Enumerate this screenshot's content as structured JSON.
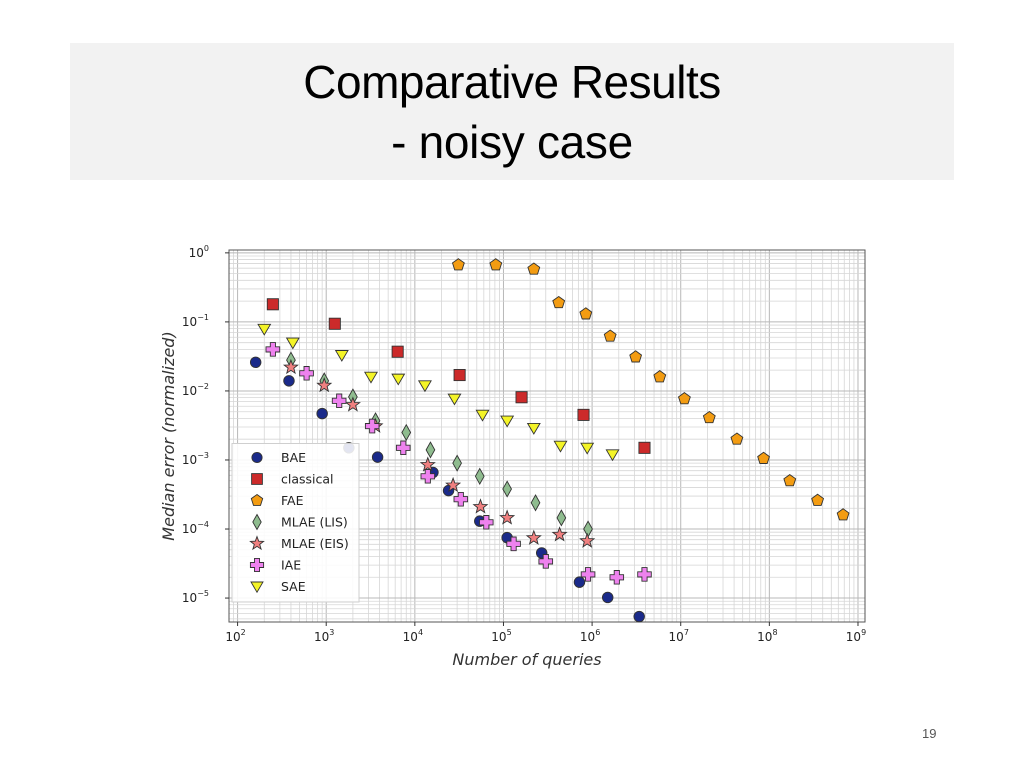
{
  "slide": {
    "title": "Comparative Results",
    "subtitle": "- noisy case",
    "page_number": "19"
  },
  "chart_data": {
    "type": "scatter",
    "xlabel": "Number of queries",
    "ylabel": "Median error (normalized)",
    "x_scale": "log",
    "y_scale": "log",
    "xlim": [
      80,
      1200000000
    ],
    "ylim": [
      4.5e-06,
      1.1
    ],
    "grid": true,
    "legend_position": "lower-left",
    "x_ticks": [
      {
        "base": "10",
        "exp": "2",
        "value": 100
      },
      {
        "base": "10",
        "exp": "3",
        "value": 1000
      },
      {
        "base": "10",
        "exp": "4",
        "value": 10000
      },
      {
        "base": "10",
        "exp": "5",
        "value": 100000
      },
      {
        "base": "10",
        "exp": "6",
        "value": 1000000
      },
      {
        "base": "10",
        "exp": "7",
        "value": 10000000
      },
      {
        "base": "10",
        "exp": "8",
        "value": 100000000
      },
      {
        "base": "10",
        "exp": "9",
        "value": 1000000000
      }
    ],
    "y_ticks": [
      {
        "base": "10",
        "exp": "0",
        "value": 1
      },
      {
        "base": "10",
        "exp": "−1",
        "value": 0.1
      },
      {
        "base": "10",
        "exp": "−2",
        "value": 0.01
      },
      {
        "base": "10",
        "exp": "−3",
        "value": 0.001
      },
      {
        "base": "10",
        "exp": "−4",
        "value": 0.0001
      },
      {
        "base": "10",
        "exp": "−5",
        "value": 1e-05
      }
    ],
    "series": [
      {
        "name": "BAE",
        "marker": "circle",
        "color": "#1a2a8a",
        "points": [
          [
            160,
            0.026
          ],
          [
            380,
            0.014
          ],
          [
            900,
            0.0047
          ],
          [
            1800,
            0.0015
          ],
          [
            3800,
            0.0011
          ],
          [
            16000,
            0.00066
          ],
          [
            24000,
            0.00036
          ],
          [
            54000,
            0.00013
          ],
          [
            110000,
            7.5e-05
          ],
          [
            270000,
            4.5e-05
          ],
          [
            720000,
            1.7e-05
          ],
          [
            1500000,
            1.02e-05
          ],
          [
            3400000,
            5.4e-06
          ]
        ]
      },
      {
        "name": "classical",
        "marker": "square",
        "color": "#cc2a2a",
        "points": [
          [
            250,
            0.18
          ],
          [
            1250,
            0.094
          ],
          [
            6400,
            0.037
          ],
          [
            32000,
            0.017
          ],
          [
            160000,
            0.0081
          ],
          [
            800000,
            0.0045
          ],
          [
            3900000,
            0.0015
          ]
        ]
      },
      {
        "name": "FAE",
        "marker": "pentagon",
        "color": "#f39c12",
        "points": [
          [
            31000,
            0.67
          ],
          [
            82000,
            0.67
          ],
          [
            220000,
            0.58
          ],
          [
            420000,
            0.19
          ],
          [
            850000,
            0.13
          ],
          [
            1600000,
            0.062
          ],
          [
            3100000,
            0.031
          ],
          [
            5800000,
            0.016
          ],
          [
            11000000,
            0.0077
          ],
          [
            21000000,
            0.0041
          ],
          [
            43000000,
            0.002
          ],
          [
            86000000,
            0.00105
          ],
          [
            170000000,
            0.0005
          ],
          [
            350000000,
            0.00026
          ],
          [
            680000000,
            0.00016
          ]
        ]
      },
      {
        "name": "MLAE (LIS)",
        "marker": "diamond",
        "color": "#8fbc8f",
        "points": [
          [
            400,
            0.028
          ],
          [
            950,
            0.014
          ],
          [
            2000,
            0.0082
          ],
          [
            3600,
            0.0037
          ],
          [
            8000,
            0.0025
          ],
          [
            15000,
            0.0014
          ],
          [
            30000,
            0.0009
          ],
          [
            54000,
            0.00058
          ],
          [
            110000,
            0.00038
          ],
          [
            230000,
            0.00024
          ],
          [
            450000,
            0.000145
          ],
          [
            900000,
            0.0001
          ]
        ]
      },
      {
        "name": "MLAE (EIS)",
        "marker": "star",
        "color": "#f08080",
        "points": [
          [
            400,
            0.022
          ],
          [
            950,
            0.012
          ],
          [
            2000,
            0.0063
          ],
          [
            3600,
            0.0031
          ],
          [
            14000,
            0.00085
          ],
          [
            27000,
            0.00043
          ],
          [
            55000,
            0.00021
          ],
          [
            110000,
            0.000145
          ],
          [
            220000,
            7.4e-05
          ],
          [
            430000,
            8.3e-05
          ],
          [
            880000,
            6.7e-05
          ]
        ]
      },
      {
        "name": "IAE",
        "marker": "plus",
        "color": "#ee82ee",
        "points": [
          [
            250,
            0.04
          ],
          [
            600,
            0.018
          ],
          [
            1400,
            0.0072
          ],
          [
            3300,
            0.0031
          ],
          [
            7400,
            0.0015
          ],
          [
            14000,
            0.00058
          ],
          [
            33000,
            0.00027
          ],
          [
            64000,
            0.000125
          ],
          [
            130000,
            6.1e-05
          ],
          [
            300000,
            3.4e-05
          ],
          [
            900000,
            2.2e-05
          ],
          [
            1900000,
            2e-05
          ],
          [
            3900000,
            2.2e-05
          ]
        ]
      },
      {
        "name": "SAE",
        "marker": "triangle-down",
        "color": "#f4f427",
        "points": [
          [
            200,
            0.079
          ],
          [
            420,
            0.05
          ],
          [
            1500,
            0.033
          ],
          [
            3200,
            0.016
          ],
          [
            6500,
            0.015
          ],
          [
            13000,
            0.012
          ],
          [
            28000,
            0.0077
          ],
          [
            58000,
            0.0045
          ],
          [
            110000,
            0.0037
          ],
          [
            220000,
            0.0029
          ],
          [
            440000,
            0.0016
          ],
          [
            880000,
            0.0015
          ],
          [
            1700000,
            0.0012
          ]
        ]
      }
    ]
  }
}
